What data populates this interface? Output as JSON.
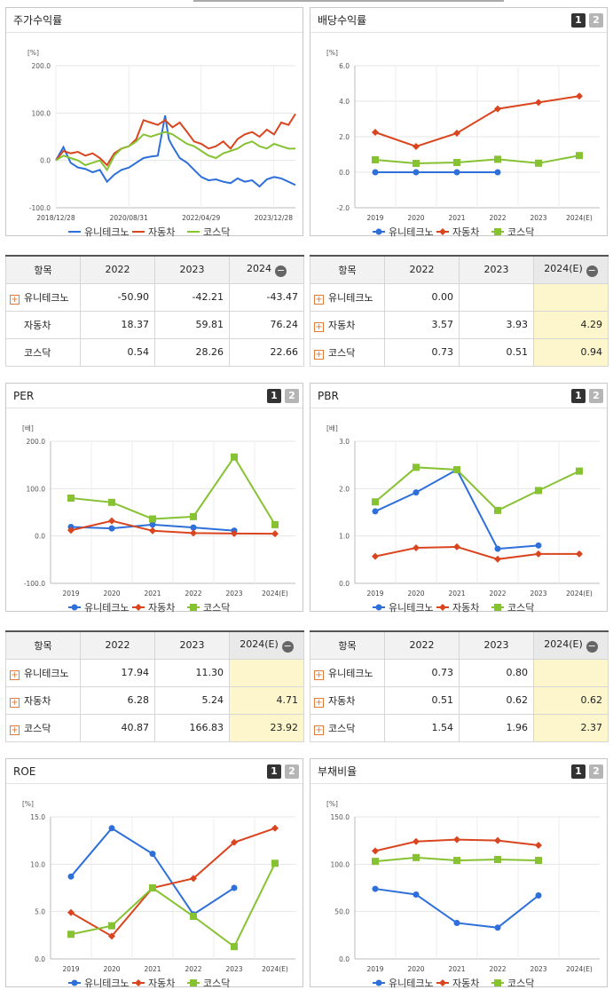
{
  "legend": {
    "s1": "유니테크노",
    "s2": "자동차",
    "s3": "코스닥"
  },
  "colors": {
    "s1": "#2e6fd9",
    "s2": "#d9451f",
    "s3": "#86c232"
  },
  "page_buttons": {
    "one": "1",
    "two": "2"
  },
  "table_headers": {
    "item": "항목",
    "y2022": "2022",
    "y2023": "2023",
    "y2024": "2024",
    "y2024e": "2024(E)"
  },
  "chart_data": [
    {
      "id": "stock",
      "type": "line",
      "title": "주가수익률",
      "ylabel": "[%]",
      "ylim": [
        -100,
        200
      ],
      "yticks": [
        "200.0",
        "100.0",
        "0.0",
        "-100.0"
      ],
      "xticks": [
        "2018/12/28",
        "2020/08/31",
        "2022/04/29",
        "2023/12/28"
      ],
      "x_range": [
        "2018-12-28",
        "2024-06-28"
      ],
      "series": [
        {
          "name": "유니테크노",
          "x": [
            "2018-12-28",
            "2019-03",
            "2019-05",
            "2019-07",
            "2019-09",
            "2019-11",
            "2020-01",
            "2020-03",
            "2020-05",
            "2020-07",
            "2020-09",
            "2020-11",
            "2021-01",
            "2021-03",
            "2021-05",
            "2021-07",
            "2021-08",
            "2021-09",
            "2021-11",
            "2022-01",
            "2022-03",
            "2022-05",
            "2022-07",
            "2022-09",
            "2022-11",
            "2023-01",
            "2023-03",
            "2023-05",
            "2023-07",
            "2023-09",
            "2023-11",
            "2024-01",
            "2024-03",
            "2024-05",
            "2024-06-28"
          ],
          "y": [
            0,
            28,
            -5,
            -15,
            -18,
            -25,
            -20,
            -45,
            -30,
            -20,
            -15,
            -5,
            5,
            8,
            10,
            95,
            45,
            30,
            5,
            -5,
            -20,
            -35,
            -42,
            -40,
            -45,
            -48,
            -38,
            -45,
            -42,
            -55,
            -40,
            -35,
            -38,
            -45,
            -52
          ]
        },
        {
          "name": "자동차",
          "x": [
            "2018-12-28",
            "2019-03",
            "2019-05",
            "2019-07",
            "2019-09",
            "2019-11",
            "2020-01",
            "2020-03",
            "2020-05",
            "2020-07",
            "2020-09",
            "2020-11",
            "2021-01",
            "2021-03",
            "2021-05",
            "2021-07",
            "2021-09",
            "2021-11",
            "2022-01",
            "2022-03",
            "2022-05",
            "2022-07",
            "2022-09",
            "2022-11",
            "2023-01",
            "2023-03",
            "2023-05",
            "2023-07",
            "2023-09",
            "2023-11",
            "2024-01",
            "2024-03",
            "2024-05",
            "2024-06-28"
          ],
          "y": [
            0,
            20,
            15,
            18,
            10,
            15,
            5,
            -10,
            15,
            25,
            30,
            45,
            85,
            80,
            75,
            85,
            70,
            80,
            60,
            40,
            35,
            25,
            30,
            40,
            25,
            45,
            55,
            60,
            50,
            65,
            55,
            80,
            75,
            98
          ]
        },
        {
          "name": "코스닥",
          "x": [
            "2018-12-28",
            "2019-03",
            "2019-05",
            "2019-07",
            "2019-09",
            "2019-11",
            "2020-01",
            "2020-03",
            "2020-05",
            "2020-07",
            "2020-09",
            "2020-11",
            "2021-01",
            "2021-03",
            "2021-05",
            "2021-07",
            "2021-09",
            "2021-11",
            "2022-01",
            "2022-03",
            "2022-05",
            "2022-07",
            "2022-09",
            "2022-11",
            "2023-01",
            "2023-03",
            "2023-05",
            "2023-07",
            "2023-09",
            "2023-11",
            "2024-01",
            "2024-03",
            "2024-05",
            "2024-06-28"
          ],
          "y": [
            0,
            10,
            5,
            0,
            -10,
            -5,
            0,
            -20,
            10,
            25,
            30,
            40,
            55,
            50,
            55,
            60,
            55,
            45,
            35,
            30,
            20,
            10,
            5,
            15,
            20,
            25,
            35,
            40,
            30,
            25,
            35,
            30,
            25,
            25
          ]
        }
      ]
    },
    {
      "id": "dividend",
      "type": "line",
      "title": "배당수익률",
      "ylabel": "[%]",
      "ylim": [
        -2,
        6
      ],
      "yticks": [
        "6.0",
        "4.0",
        "2.0",
        "0.0",
        "-2.0"
      ],
      "categories": [
        "2019",
        "2020",
        "2021",
        "2022",
        "2023",
        "2024(E)"
      ],
      "series": [
        {
          "name": "유니테크노",
          "values": [
            0.0,
            0.0,
            0.0,
            0.0,
            null,
            null
          ]
        },
        {
          "name": "자동차",
          "values": [
            2.25,
            1.45,
            2.2,
            3.57,
            3.93,
            4.29
          ]
        },
        {
          "name": "코스닥",
          "values": [
            0.7,
            0.5,
            0.55,
            0.73,
            0.51,
            0.94
          ]
        }
      ]
    },
    {
      "id": "per",
      "type": "line",
      "title": "PER",
      "ylabel": "[배]",
      "ylim": [
        -100,
        200
      ],
      "yticks": [
        "200.0",
        "100.0",
        "0.0",
        "-100.0"
      ],
      "categories": [
        "2019",
        "2020",
        "2021",
        "2022",
        "2023",
        "2024(E)"
      ],
      "series": [
        {
          "name": "유니테크노",
          "values": [
            19,
            16,
            24,
            17.94,
            11.3,
            null
          ]
        },
        {
          "name": "자동차",
          "values": [
            12,
            32,
            11,
            6.28,
            5.24,
            4.71
          ]
        },
        {
          "name": "코스닥",
          "values": [
            80,
            71,
            36,
            40.87,
            166.83,
            23.92
          ]
        }
      ]
    },
    {
      "id": "pbr",
      "type": "line",
      "title": "PBR",
      "ylabel": "[배]",
      "ylim": [
        0,
        3
      ],
      "yticks": [
        "3.0",
        "2.0",
        "1.0",
        "0.0"
      ],
      "categories": [
        "2019",
        "2020",
        "2021",
        "2022",
        "2023",
        "2024(E)"
      ],
      "series": [
        {
          "name": "유니테크노",
          "values": [
            1.52,
            1.92,
            2.4,
            0.73,
            0.8,
            null
          ]
        },
        {
          "name": "자동차",
          "values": [
            0.57,
            0.75,
            0.77,
            0.51,
            0.62,
            0.62
          ]
        },
        {
          "name": "코스닥",
          "values": [
            1.72,
            2.45,
            2.4,
            1.54,
            1.96,
            2.37
          ]
        }
      ]
    },
    {
      "id": "roe",
      "type": "line",
      "title": "ROE",
      "ylabel": "[%]",
      "ylim": [
        0,
        15
      ],
      "yticks": [
        "15.0",
        "10.0",
        "5.0",
        "0.0"
      ],
      "categories": [
        "2019",
        "2020",
        "2021",
        "2022",
        "2023",
        "2024(E)"
      ],
      "series": [
        {
          "name": "유니테크노",
          "values": [
            8.7,
            13.8,
            11.1,
            4.7,
            7.5,
            null
          ]
        },
        {
          "name": "자동차",
          "values": [
            4.9,
            2.4,
            7.5,
            8.5,
            12.3,
            13.8
          ]
        },
        {
          "name": "코스닥",
          "values": [
            2.6,
            3.5,
            7.5,
            4.5,
            1.3,
            10.1
          ]
        }
      ]
    },
    {
      "id": "debt",
      "type": "line",
      "title": "부채비율",
      "ylabel": "[%]",
      "ylim": [
        0,
        150
      ],
      "yticks": [
        "150.0",
        "100.0",
        "50.0",
        "0.0"
      ],
      "categories": [
        "2019",
        "2020",
        "2021",
        "2022",
        "2023",
        "2024(E)"
      ],
      "series": [
        {
          "name": "유니테크노",
          "values": [
            74,
            68,
            38,
            33,
            67,
            null
          ]
        },
        {
          "name": "자동차",
          "values": [
            114,
            124,
            126,
            125,
            120,
            null
          ]
        },
        {
          "name": "코스닥",
          "values": [
            103,
            107,
            104,
            105,
            104,
            null
          ]
        }
      ]
    }
  ],
  "tables": {
    "stock": {
      "rows": [
        {
          "name": "유니테크노",
          "plus": true,
          "v": [
            "-50.90",
            "-42.21",
            "-43.47"
          ]
        },
        {
          "name": "자동차",
          "plus": false,
          "v": [
            "18.37",
            "59.81",
            "76.24"
          ]
        },
        {
          "name": "코스닥",
          "plus": false,
          "v": [
            "0.54",
            "28.26",
            "22.66"
          ]
        }
      ]
    },
    "dividend": {
      "rows": [
        {
          "name": "유니테크노",
          "plus": true,
          "v": [
            "0.00",
            "",
            ""
          ]
        },
        {
          "name": "자동차",
          "plus": true,
          "v": [
            "3.57",
            "3.93",
            "4.29"
          ]
        },
        {
          "name": "코스닥",
          "plus": true,
          "v": [
            "0.73",
            "0.51",
            "0.94"
          ]
        }
      ]
    },
    "per": {
      "rows": [
        {
          "name": "유니테크노",
          "plus": true,
          "v": [
            "17.94",
            "11.30",
            ""
          ]
        },
        {
          "name": "자동차",
          "plus": true,
          "v": [
            "6.28",
            "5.24",
            "4.71"
          ]
        },
        {
          "name": "코스닥",
          "plus": true,
          "v": [
            "40.87",
            "166.83",
            "23.92"
          ]
        }
      ]
    },
    "pbr": {
      "rows": [
        {
          "name": "유니테크노",
          "plus": true,
          "v": [
            "0.73",
            "0.80",
            ""
          ]
        },
        {
          "name": "자동차",
          "plus": true,
          "v": [
            "0.51",
            "0.62",
            "0.62"
          ]
        },
        {
          "name": "코스닥",
          "plus": true,
          "v": [
            "1.54",
            "1.96",
            "2.37"
          ]
        }
      ]
    }
  }
}
